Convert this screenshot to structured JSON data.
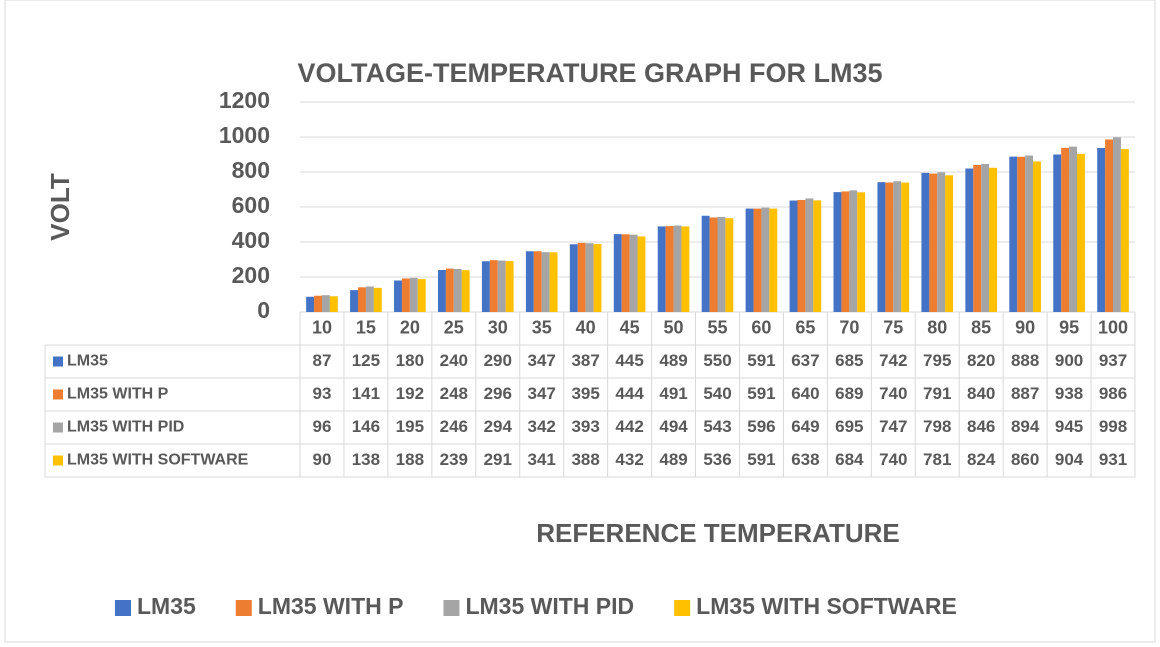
{
  "chart_data": {
    "type": "bar",
    "title": "VOLTAGE-TEMPERATURE GRAPH FOR LM35",
    "ylabel": "VOLT",
    "xlabel": "REFERENCE TEMPERATURE",
    "categories": [
      "10",
      "15",
      "20",
      "25",
      "30",
      "35",
      "40",
      "45",
      "50",
      "55",
      "60",
      "65",
      "70",
      "75",
      "80",
      "85",
      "90",
      "95",
      "100"
    ],
    "series": [
      {
        "name": "LM35",
        "color": "#4472c4",
        "values": [
          87,
          125,
          180,
          240,
          290,
          347,
          387,
          445,
          489,
          550,
          591,
          637,
          685,
          742,
          795,
          820,
          888,
          900,
          937
        ]
      },
      {
        "name": "LM35 WITH P",
        "color": "#ed7d31",
        "values": [
          93,
          141,
          192,
          248,
          296,
          347,
          395,
          444,
          491,
          540,
          591,
          640,
          689,
          740,
          791,
          840,
          887,
          938,
          986
        ]
      },
      {
        "name": "LM35 WITH PID",
        "color": "#a5a5a5",
        "values": [
          96,
          146,
          195,
          246,
          294,
          342,
          393,
          442,
          494,
          543,
          596,
          649,
          695,
          747,
          798,
          846,
          894,
          945,
          998
        ]
      },
      {
        "name": "LM35 WITH SOFTWARE",
        "color": "#ffc000",
        "values": [
          90,
          138,
          188,
          239,
          291,
          341,
          388,
          432,
          489,
          536,
          591,
          638,
          684,
          740,
          781,
          824,
          860,
          904,
          931
        ]
      }
    ],
    "ylim": [
      0,
      1200
    ],
    "yticks": [
      0,
      200,
      400,
      600,
      800,
      1000,
      1200
    ],
    "grid": true,
    "legend": "bottom",
    "data_table": true
  }
}
